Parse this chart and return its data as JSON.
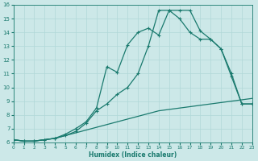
{
  "xlabel": "Humidex (Indice chaleur)",
  "xlim": [
    0,
    23
  ],
  "ylim": [
    6,
    16
  ],
  "xticks": [
    0,
    1,
    2,
    3,
    4,
    5,
    6,
    7,
    8,
    9,
    10,
    11,
    12,
    13,
    14,
    15,
    16,
    17,
    18,
    19,
    20,
    21,
    22,
    23
  ],
  "yticks": [
    6,
    7,
    8,
    9,
    10,
    11,
    12,
    13,
    14,
    15,
    16
  ],
  "bg_color": "#cce8e8",
  "line_color": "#1a7a6e",
  "grid_color": "#b0d8d8",
  "line1_y": [
    6.2,
    6.1,
    6.1,
    6.2,
    6.3,
    6.5,
    6.7,
    6.9,
    7.1,
    7.3,
    7.5,
    7.7,
    7.9,
    8.1,
    8.3,
    8.4,
    8.5,
    8.6,
    8.7,
    8.8,
    8.9,
    9.0,
    9.1,
    9.2
  ],
  "line2_y": [
    6.2,
    6.1,
    6.1,
    6.2,
    6.3,
    6.5,
    6.8,
    7.4,
    8.3,
    8.8,
    9.5,
    10.0,
    11.0,
    13.0,
    15.6,
    15.6,
    15.0,
    14.0,
    13.5,
    13.5,
    12.8,
    11.0,
    8.8,
    8.8
  ],
  "line3_y": [
    6.2,
    6.1,
    6.1,
    6.2,
    6.3,
    6.6,
    7.0,
    7.5,
    8.5,
    11.5,
    11.1,
    13.1,
    14.0,
    14.3,
    13.8,
    15.6,
    15.6,
    15.6,
    14.1,
    13.5,
    12.8,
    10.8,
    8.8,
    8.8
  ],
  "marker": "+"
}
